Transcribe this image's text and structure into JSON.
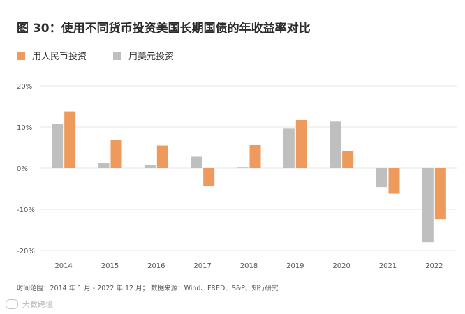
{
  "title": "图 30：使用不同货币投资美国长期国债的年收益率对比",
  "legend": [
    {
      "label": "用人民币投资",
      "color": "#ee9a5d"
    },
    {
      "label": "用美元投资",
      "color": "#bfbfbf"
    }
  ],
  "chart_data": {
    "type": "bar",
    "categories": [
      "2014",
      "2015",
      "2016",
      "2017",
      "2018",
      "2019",
      "2020",
      "2021",
      "2022"
    ],
    "series": [
      {
        "name": "用美元投资",
        "color": "#bfbfbf",
        "values": [
          10.7,
          1.2,
          0.7,
          2.8,
          0.0,
          9.6,
          11.3,
          -4.6,
          -18.0
        ]
      },
      {
        "name": "用人民币投资",
        "color": "#ee9a5d",
        "values": [
          13.8,
          6.9,
          5.5,
          -4.3,
          5.6,
          11.7,
          4.1,
          -6.2,
          -12.4
        ]
      }
    ],
    "yticks": [
      "20%",
      "10%",
      "0%",
      "-10%",
      "-20%"
    ],
    "ylim": [
      -20,
      20
    ],
    "grid": true
  },
  "source": "时间范围：2014 年 1 月 - 2022 年 12 月；   数据来源：Wind、FRED、S&P、知行研究",
  "watermark": "大数跨境"
}
